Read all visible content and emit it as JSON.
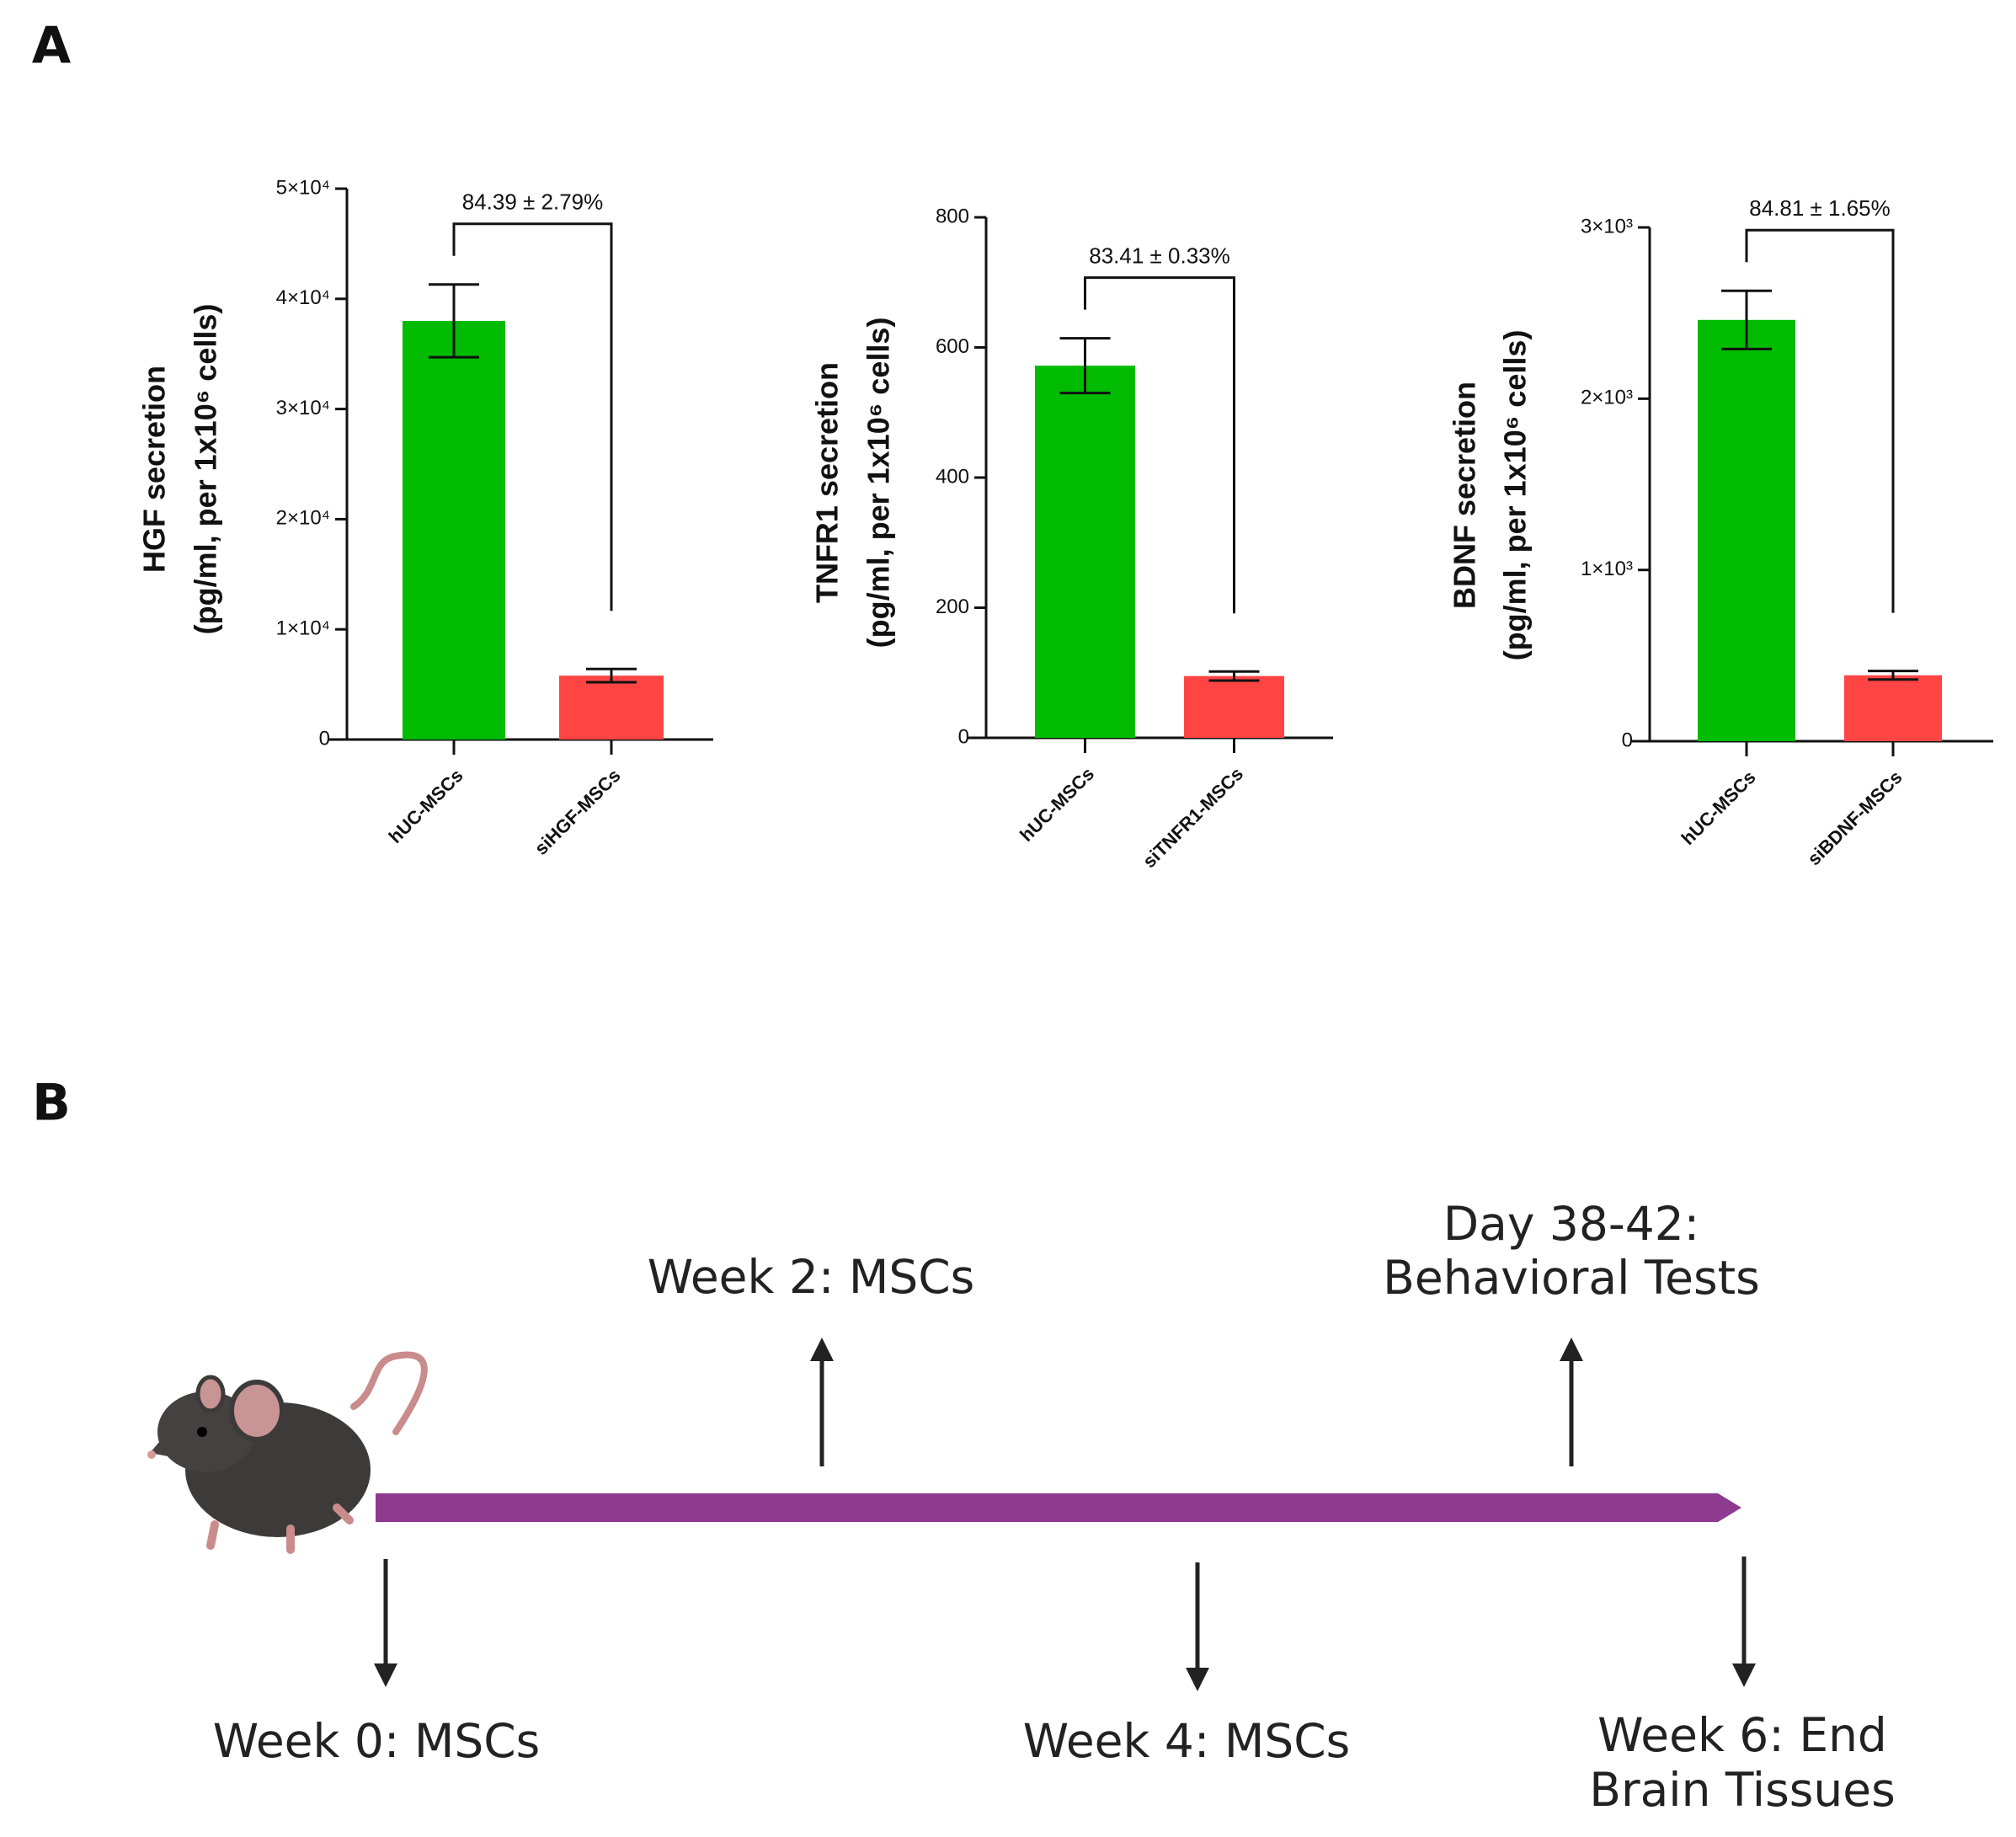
{
  "panels": [
    "A",
    "B"
  ],
  "chart_data": [
    {
      "type": "bar",
      "ylabel": [
        "HGF secretion",
        "(pg/ml, per 1x10⁶ cells)"
      ],
      "categories": [
        "hUC-MSCs",
        "siHGF-MSCs"
      ],
      "values": [
        38000,
        5800
      ],
      "errors": [
        3300,
        600
      ],
      "colors": [
        "#00bb00",
        "#ff4444"
      ],
      "annotation": "84.39 ± 2.79%",
      "ylim": [
        0,
        50000
      ],
      "yticks": [
        0,
        {
          "value": 10000,
          "label": "1×10⁴"
        },
        {
          "value": 20000,
          "label": "2×10⁴"
        },
        {
          "value": 30000,
          "label": "3×10⁴"
        },
        {
          "value": 40000,
          "label": "4×10⁴"
        },
        {
          "value": 50000,
          "label": "5×10⁴"
        }
      ]
    },
    {
      "type": "bar",
      "ylabel": [
        "TNFR1 secretion",
        "(pg/ml, per 1x10⁶ cells)"
      ],
      "categories": [
        "hUC-MSCs",
        "siTNFR1-MSCs"
      ],
      "values": [
        572,
        95
      ],
      "errors": [
        42,
        7
      ],
      "colors": [
        "#00bb00",
        "#ff4444"
      ],
      "annotation": "83.41 ± 0.33%",
      "ylim": [
        0,
        800
      ],
      "yticks": [
        0,
        200,
        400,
        600,
        800
      ]
    },
    {
      "type": "bar",
      "ylabel": [
        "BDNF secretion",
        "(pg/ml, per 1x10⁶ cells)"
      ],
      "categories": [
        "hUC-MSCs",
        "siBDNF-MSCs"
      ],
      "values": [
        2460,
        385
      ],
      "errors": [
        170,
        25
      ],
      "colors": [
        "#00bb00",
        "#ff4444"
      ],
      "annotation": "84.81 ± 1.65%",
      "ylim": [
        0,
        3000
      ],
      "yticks": [
        0,
        {
          "value": 1000,
          "label": "1×10³"
        },
        {
          "value": 2000,
          "label": "2×10³"
        },
        {
          "value": 3000,
          "label": "3×10³"
        }
      ]
    }
  ],
  "timeline": {
    "color": "#8e3a8e",
    "events": [
      {
        "lines": [
          "Week 0: MSCs"
        ]
      },
      {
        "lines": [
          "Week 2: MSCs"
        ]
      },
      {
        "lines": [
          "Week 4: MSCs"
        ]
      },
      {
        "lines": [
          "Day 38-42:",
          "Behavioral Tests"
        ]
      },
      {
        "lines": [
          "Week 6: End",
          "Brain Tissues"
        ]
      }
    ]
  }
}
